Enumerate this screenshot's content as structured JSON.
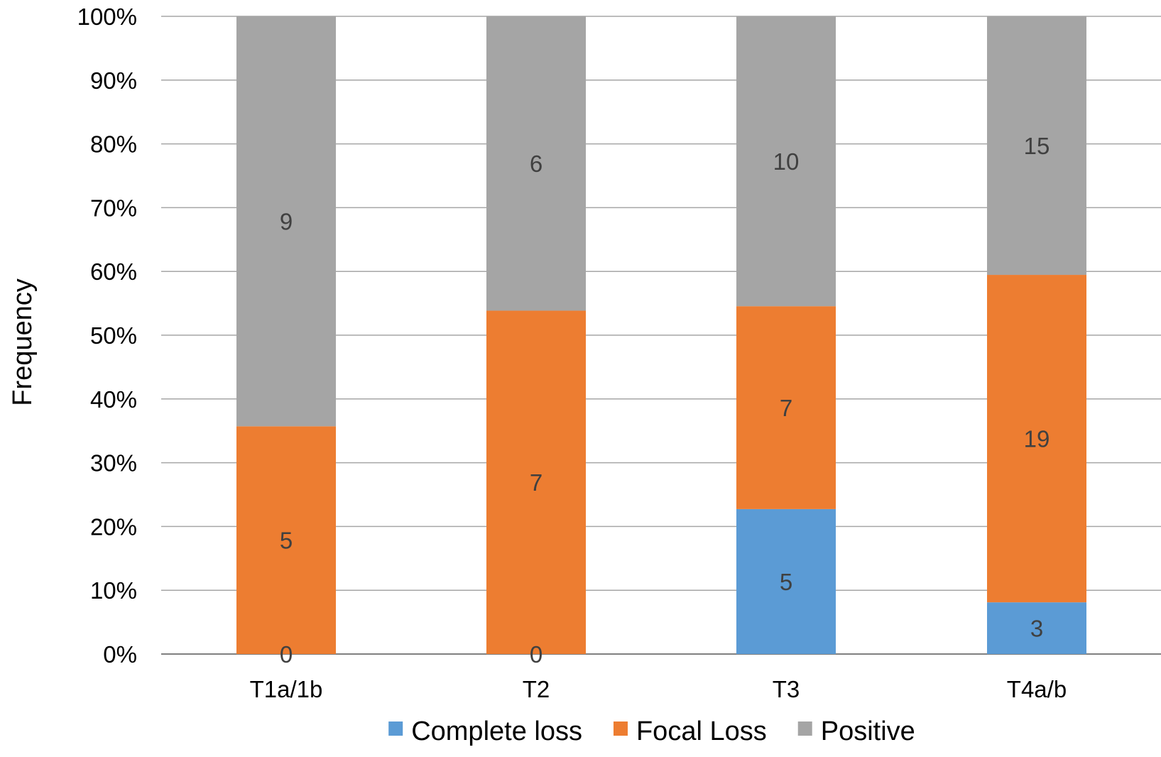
{
  "chart_data": {
    "type": "bar",
    "stacked": true,
    "percent_stacked": true,
    "categories": [
      "T1a/1b",
      "T2",
      "T3",
      "T4a/b"
    ],
    "series": [
      {
        "name": "Complete loss",
        "values": [
          0,
          0,
          5,
          3
        ],
        "color": "#5B9BD5"
      },
      {
        "name": "Focal Loss",
        "values": [
          5,
          7,
          7,
          19
        ],
        "color": "#ED7D31"
      },
      {
        "name": "Positive",
        "values": [
          9,
          6,
          10,
          15
        ],
        "color": "#A5A5A5"
      }
    ],
    "ylabel": "Frequency",
    "xlabel": "",
    "ylim": [
      0,
      100
    ],
    "yticks": [
      "0%",
      "10%",
      "20%",
      "30%",
      "40%",
      "50%",
      "60%",
      "70%",
      "80%",
      "90%",
      "100%"
    ],
    "grid": true,
    "legend": "bottom",
    "gridline_color": "#A6A6A6",
    "data_label_color": "#404040"
  }
}
